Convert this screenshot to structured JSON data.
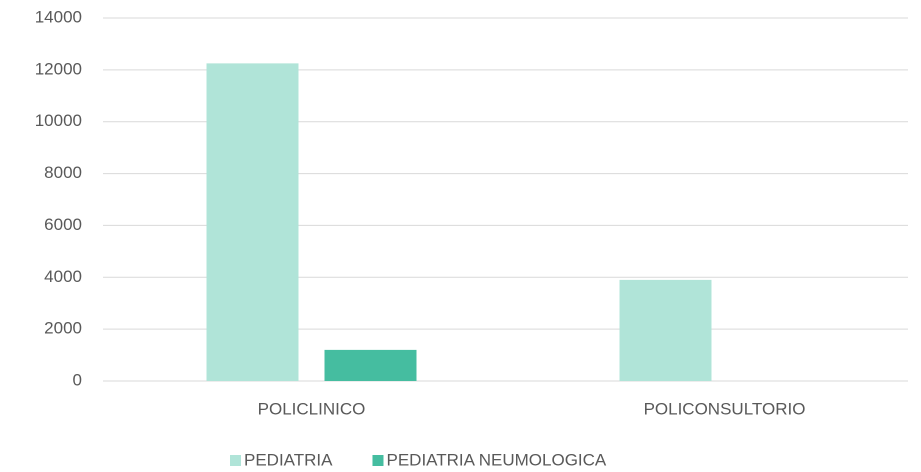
{
  "chart_data": {
    "type": "bar",
    "categories": [
      "POLICLINICO",
      "POLICONSULTORIO"
    ],
    "series": [
      {
        "name": "PEDIATRIA",
        "color": "#b0e4d8",
        "values": [
          12250,
          3900
        ]
      },
      {
        "name": "PEDIATRIA NEUMOLOGICA",
        "color": "#45bda0",
        "values": [
          1200,
          0
        ]
      }
    ],
    "ylim": [
      0,
      14000
    ],
    "yticks": [
      0,
      2000,
      4000,
      6000,
      8000,
      10000,
      12000,
      14000
    ],
    "grid": true,
    "legend": "bottom"
  }
}
